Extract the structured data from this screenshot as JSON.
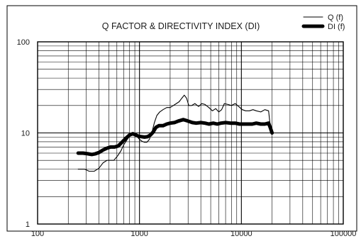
{
  "chart_data": {
    "type": "line",
    "title": "Q FACTOR & DIRECTIVITY INDEX (DI)",
    "xlabel": "",
    "ylabel": "",
    "x_scale": "log",
    "y_scale": "log",
    "xlim": [
      100,
      100000
    ],
    "ylim": [
      1,
      100
    ],
    "x_tick_labels": [
      "100",
      "1000",
      "10000",
      "100000"
    ],
    "y_tick_labels": [
      "100",
      "10",
      "1"
    ],
    "grid": true,
    "legend_position": "top-right",
    "series": [
      {
        "name": "Q (f)",
        "style": "thin",
        "color": "#000000",
        "points": [
          [
            250,
            4.0
          ],
          [
            290,
            4.0
          ],
          [
            320,
            3.8
          ],
          [
            360,
            3.8
          ],
          [
            400,
            4.1
          ],
          [
            440,
            4.7
          ],
          [
            480,
            5.0
          ],
          [
            520,
            5.0
          ],
          [
            560,
            5.0
          ],
          [
            610,
            5.6
          ],
          [
            660,
            6.4
          ],
          [
            700,
            7.4
          ],
          [
            760,
            8.5
          ],
          [
            820,
            9.6
          ],
          [
            880,
            9.8
          ],
          [
            940,
            9.2
          ],
          [
            1000,
            8.5
          ],
          [
            1060,
            8.1
          ],
          [
            1120,
            7.9
          ],
          [
            1180,
            7.9
          ],
          [
            1250,
            8.5
          ],
          [
            1320,
            10.0
          ],
          [
            1400,
            13.0
          ],
          [
            1480,
            15.5
          ],
          [
            1580,
            17.0
          ],
          [
            1700,
            18.0
          ],
          [
            1850,
            19.0
          ],
          [
            2000,
            19.0
          ],
          [
            2150,
            20.0
          ],
          [
            2300,
            21.0
          ],
          [
            2450,
            22.0
          ],
          [
            2600,
            24.0
          ],
          [
            2750,
            26.0
          ],
          [
            2900,
            24.0
          ],
          [
            3050,
            20.0
          ],
          [
            3250,
            20.0
          ],
          [
            3500,
            21.0
          ],
          [
            3800,
            19.5
          ],
          [
            4100,
            21.0
          ],
          [
            4400,
            20.5
          ],
          [
            4800,
            19.0
          ],
          [
            5200,
            17.5
          ],
          [
            5600,
            18.5
          ],
          [
            6000,
            17.0
          ],
          [
            6400,
            18.0
          ],
          [
            6800,
            21.0
          ],
          [
            7400,
            20.5
          ],
          [
            8000,
            20.0
          ],
          [
            8700,
            21.0
          ],
          [
            9400,
            19.5
          ],
          [
            10200,
            18.0
          ],
          [
            11000,
            17.5
          ],
          [
            12000,
            17.5
          ],
          [
            13000,
            18.0
          ],
          [
            14000,
            17.5
          ],
          [
            15500,
            17.0
          ],
          [
            17000,
            18.0
          ],
          [
            18500,
            17.5
          ],
          [
            19200,
            12.0
          ],
          [
            20000,
            10.0
          ]
        ]
      },
      {
        "name": "DI (f)",
        "style": "thick",
        "color": "#000000",
        "points": [
          [
            250,
            6.0
          ],
          [
            280,
            6.0
          ],
          [
            310,
            5.9
          ],
          [
            340,
            5.8
          ],
          [
            370,
            5.9
          ],
          [
            400,
            6.1
          ],
          [
            440,
            6.5
          ],
          [
            480,
            6.8
          ],
          [
            520,
            7.0
          ],
          [
            570,
            7.0
          ],
          [
            620,
            7.2
          ],
          [
            680,
            8.0
          ],
          [
            740,
            8.8
          ],
          [
            800,
            9.5
          ],
          [
            860,
            9.8
          ],
          [
            920,
            9.5
          ],
          [
            980,
            9.2
          ],
          [
            1050,
            9.1
          ],
          [
            1120,
            9.0
          ],
          [
            1200,
            9.1
          ],
          [
            1280,
            9.5
          ],
          [
            1360,
            10.2
          ],
          [
            1450,
            11.5
          ],
          [
            1550,
            12.0
          ],
          [
            1700,
            12.0
          ],
          [
            1850,
            12.5
          ],
          [
            2000,
            12.8
          ],
          [
            2200,
            13.0
          ],
          [
            2400,
            13.5
          ],
          [
            2700,
            14.0
          ],
          [
            3000,
            13.5
          ],
          [
            3300,
            13.0
          ],
          [
            3600,
            12.8
          ],
          [
            4000,
            13.0
          ],
          [
            4400,
            12.8
          ],
          [
            4800,
            12.5
          ],
          [
            5300,
            12.8
          ],
          [
            5800,
            12.5
          ],
          [
            6300,
            12.8
          ],
          [
            7000,
            13.0
          ],
          [
            7800,
            12.8
          ],
          [
            8700,
            12.8
          ],
          [
            9600,
            12.5
          ],
          [
            10500,
            12.5
          ],
          [
            11500,
            12.5
          ],
          [
            12800,
            12.5
          ],
          [
            14000,
            12.8
          ],
          [
            15500,
            12.5
          ],
          [
            17000,
            12.5
          ],
          [
            18500,
            12.8
          ],
          [
            19200,
            11.5
          ],
          [
            20000,
            10.0
          ]
        ]
      }
    ]
  }
}
